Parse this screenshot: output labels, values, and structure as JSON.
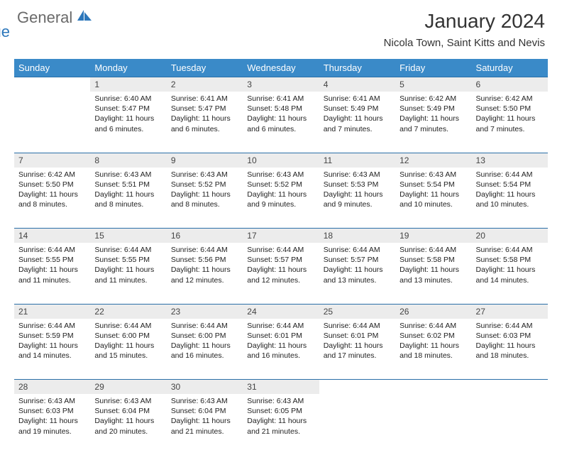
{
  "logo": {
    "word1": "General",
    "word2": "Blue"
  },
  "title": "January 2024",
  "subtitle": "Nicola Town, Saint Kitts and Nevis",
  "dayHeaders": [
    "Sunday",
    "Monday",
    "Tuesday",
    "Wednesday",
    "Thursday",
    "Friday",
    "Saturday"
  ],
  "colors": {
    "headerBg": "#3a8ac8",
    "rule": "#2a6fa8",
    "dayNumBg": "#ececec",
    "logoAccent": "#2c77bb",
    "logoGray": "#6a6a6a"
  },
  "weeks": [
    [
      {
        "n": "",
        "sr": "",
        "ss": "",
        "dl": ""
      },
      {
        "n": "1",
        "sr": "6:40 AM",
        "ss": "5:47 PM",
        "dl": "11 hours and 6 minutes."
      },
      {
        "n": "2",
        "sr": "6:41 AM",
        "ss": "5:47 PM",
        "dl": "11 hours and 6 minutes."
      },
      {
        "n": "3",
        "sr": "6:41 AM",
        "ss": "5:48 PM",
        "dl": "11 hours and 6 minutes."
      },
      {
        "n": "4",
        "sr": "6:41 AM",
        "ss": "5:49 PM",
        "dl": "11 hours and 7 minutes."
      },
      {
        "n": "5",
        "sr": "6:42 AM",
        "ss": "5:49 PM",
        "dl": "11 hours and 7 minutes."
      },
      {
        "n": "6",
        "sr": "6:42 AM",
        "ss": "5:50 PM",
        "dl": "11 hours and 7 minutes."
      }
    ],
    [
      {
        "n": "7",
        "sr": "6:42 AM",
        "ss": "5:50 PM",
        "dl": "11 hours and 8 minutes."
      },
      {
        "n": "8",
        "sr": "6:43 AM",
        "ss": "5:51 PM",
        "dl": "11 hours and 8 minutes."
      },
      {
        "n": "9",
        "sr": "6:43 AM",
        "ss": "5:52 PM",
        "dl": "11 hours and 8 minutes."
      },
      {
        "n": "10",
        "sr": "6:43 AM",
        "ss": "5:52 PM",
        "dl": "11 hours and 9 minutes."
      },
      {
        "n": "11",
        "sr": "6:43 AM",
        "ss": "5:53 PM",
        "dl": "11 hours and 9 minutes."
      },
      {
        "n": "12",
        "sr": "6:43 AM",
        "ss": "5:54 PM",
        "dl": "11 hours and 10 minutes."
      },
      {
        "n": "13",
        "sr": "6:44 AM",
        "ss": "5:54 PM",
        "dl": "11 hours and 10 minutes."
      }
    ],
    [
      {
        "n": "14",
        "sr": "6:44 AM",
        "ss": "5:55 PM",
        "dl": "11 hours and 11 minutes."
      },
      {
        "n": "15",
        "sr": "6:44 AM",
        "ss": "5:55 PM",
        "dl": "11 hours and 11 minutes."
      },
      {
        "n": "16",
        "sr": "6:44 AM",
        "ss": "5:56 PM",
        "dl": "11 hours and 12 minutes."
      },
      {
        "n": "17",
        "sr": "6:44 AM",
        "ss": "5:57 PM",
        "dl": "11 hours and 12 minutes."
      },
      {
        "n": "18",
        "sr": "6:44 AM",
        "ss": "5:57 PM",
        "dl": "11 hours and 13 minutes."
      },
      {
        "n": "19",
        "sr": "6:44 AM",
        "ss": "5:58 PM",
        "dl": "11 hours and 13 minutes."
      },
      {
        "n": "20",
        "sr": "6:44 AM",
        "ss": "5:58 PM",
        "dl": "11 hours and 14 minutes."
      }
    ],
    [
      {
        "n": "21",
        "sr": "6:44 AM",
        "ss": "5:59 PM",
        "dl": "11 hours and 14 minutes."
      },
      {
        "n": "22",
        "sr": "6:44 AM",
        "ss": "6:00 PM",
        "dl": "11 hours and 15 minutes."
      },
      {
        "n": "23",
        "sr": "6:44 AM",
        "ss": "6:00 PM",
        "dl": "11 hours and 16 minutes."
      },
      {
        "n": "24",
        "sr": "6:44 AM",
        "ss": "6:01 PM",
        "dl": "11 hours and 16 minutes."
      },
      {
        "n": "25",
        "sr": "6:44 AM",
        "ss": "6:01 PM",
        "dl": "11 hours and 17 minutes."
      },
      {
        "n": "26",
        "sr": "6:44 AM",
        "ss": "6:02 PM",
        "dl": "11 hours and 18 minutes."
      },
      {
        "n": "27",
        "sr": "6:44 AM",
        "ss": "6:03 PM",
        "dl": "11 hours and 18 minutes."
      }
    ],
    [
      {
        "n": "28",
        "sr": "6:43 AM",
        "ss": "6:03 PM",
        "dl": "11 hours and 19 minutes."
      },
      {
        "n": "29",
        "sr": "6:43 AM",
        "ss": "6:04 PM",
        "dl": "11 hours and 20 minutes."
      },
      {
        "n": "30",
        "sr": "6:43 AM",
        "ss": "6:04 PM",
        "dl": "11 hours and 21 minutes."
      },
      {
        "n": "31",
        "sr": "6:43 AM",
        "ss": "6:05 PM",
        "dl": "11 hours and 21 minutes."
      },
      {
        "n": "",
        "sr": "",
        "ss": "",
        "dl": ""
      },
      {
        "n": "",
        "sr": "",
        "ss": "",
        "dl": ""
      },
      {
        "n": "",
        "sr": "",
        "ss": "",
        "dl": ""
      }
    ]
  ]
}
